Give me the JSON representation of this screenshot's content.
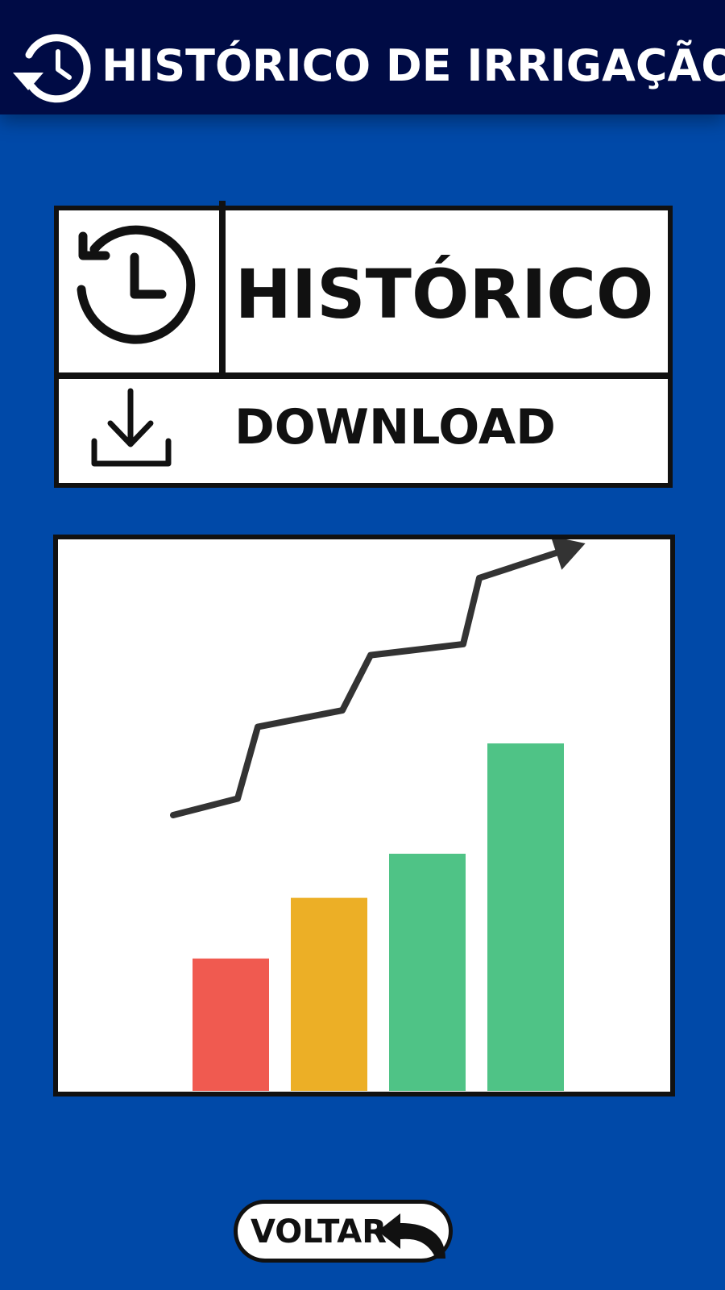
{
  "header": {
    "title": "HISTÓRICO DE IRRIGAÇÃO",
    "icon": "history-icon",
    "background": "#000b45"
  },
  "page_background": "#0049a8",
  "panel": {
    "history_icon": "clock-history-icon",
    "history_label": "HISTÓRICO",
    "download_icon": "download-icon",
    "download_label": "DOWNLOAD"
  },
  "chart_data": {
    "type": "bar",
    "categories": [
      "",
      "",
      "",
      ""
    ],
    "values": [
      24,
      35,
      43,
      63
    ],
    "colors": [
      "#f05a50",
      "#ecaf26",
      "#4fc386",
      "#4fc386"
    ],
    "trend_line": [
      {
        "x": 0.0,
        "y": 50
      },
      {
        "x": 0.8,
        "y": 53
      },
      {
        "x": 1.05,
        "y": 66
      },
      {
        "x": 2.1,
        "y": 69
      },
      {
        "x": 2.45,
        "y": 79
      },
      {
        "x": 3.6,
        "y": 81
      },
      {
        "x": 3.8,
        "y": 93
      },
      {
        "x": 4.85,
        "y": 98
      }
    ],
    "trend_arrow": true,
    "title": "",
    "xlabel": "",
    "ylabel": "",
    "ylim": [
      0,
      100
    ],
    "axes_visible": false,
    "grid": false,
    "legend": "none"
  },
  "footer": {
    "back_label": "VOLTAR",
    "back_icon": "return-arrow-icon"
  }
}
